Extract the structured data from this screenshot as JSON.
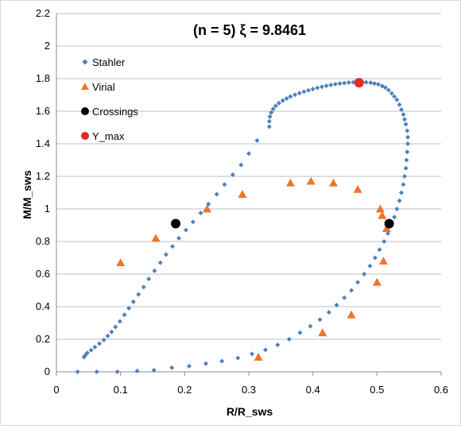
{
  "chart_data": {
    "type": "scatter",
    "title": "(n = 5)   ξ = 9.8461",
    "xlabel": "R/R_sws",
    "ylabel": "M/M_sws",
    "xlim": [
      0,
      0.6
    ],
    "ylim": [
      0,
      2.2
    ],
    "xticks": [
      "0",
      "0.1",
      "0.2",
      "0.3",
      "0.4",
      "0.5",
      "0.6"
    ],
    "yticks": [
      "0",
      "0.2",
      "0.4",
      "0.6",
      "0.8",
      "1",
      "1.2",
      "1.4",
      "1.6",
      "1.8",
      "2",
      "2.2"
    ],
    "grid": "horizontal",
    "legend_position": "left-inside",
    "series": [
      {
        "name": "Stahler",
        "marker": "diamond",
        "color": "#4f81bd",
        "points": [
          [
            0.033,
            0.0
          ],
          [
            0.063,
            0.0
          ],
          [
            0.095,
            0.0
          ],
          [
            0.126,
            0.005
          ],
          [
            0.152,
            0.01
          ],
          [
            0.18,
            0.025
          ],
          [
            0.207,
            0.035
          ],
          [
            0.233,
            0.05
          ],
          [
            0.258,
            0.065
          ],
          [
            0.283,
            0.085
          ],
          [
            0.305,
            0.11
          ],
          [
            0.326,
            0.135
          ],
          [
            0.345,
            0.165
          ],
          [
            0.363,
            0.2
          ],
          [
            0.38,
            0.24
          ],
          [
            0.396,
            0.28
          ],
          [
            0.411,
            0.32
          ],
          [
            0.425,
            0.365
          ],
          [
            0.437,
            0.41
          ],
          [
            0.449,
            0.455
          ],
          [
            0.46,
            0.5
          ],
          [
            0.47,
            0.55
          ],
          [
            0.48,
            0.6
          ],
          [
            0.489,
            0.65
          ],
          [
            0.497,
            0.7
          ],
          [
            0.504,
            0.75
          ],
          [
            0.511,
            0.8
          ],
          [
            0.517,
            0.85
          ],
          [
            0.522,
            0.9
          ],
          [
            0.527,
            0.95
          ],
          [
            0.531,
            1.0
          ],
          [
            0.535,
            1.05
          ],
          [
            0.538,
            1.1
          ],
          [
            0.541,
            1.15
          ],
          [
            0.543,
            1.2
          ],
          [
            0.545,
            1.25
          ],
          [
            0.546,
            1.3
          ],
          [
            0.547,
            1.35
          ],
          [
            0.548,
            1.4
          ],
          [
            0.548,
            1.44
          ],
          [
            0.547,
            1.48
          ],
          [
            0.545,
            1.52
          ],
          [
            0.543,
            1.55
          ],
          [
            0.541,
            1.58
          ],
          [
            0.538,
            1.61
          ],
          [
            0.535,
            1.64
          ],
          [
            0.531,
            1.67
          ],
          [
            0.527,
            1.69
          ],
          [
            0.523,
            1.71
          ],
          [
            0.518,
            1.73
          ],
          [
            0.513,
            1.745
          ],
          [
            0.508,
            1.755
          ],
          [
            0.502,
            1.765
          ],
          [
            0.496,
            1.77
          ],
          [
            0.49,
            1.775
          ],
          [
            0.483,
            1.778
          ],
          [
            0.477,
            1.779
          ],
          [
            0.47,
            1.779
          ],
          [
            0.463,
            1.778
          ],
          [
            0.456,
            1.776
          ],
          [
            0.449,
            1.773
          ],
          [
            0.442,
            1.77
          ],
          [
            0.435,
            1.766
          ],
          [
            0.428,
            1.761
          ],
          [
            0.421,
            1.756
          ],
          [
            0.414,
            1.75
          ],
          [
            0.407,
            1.743
          ],
          [
            0.4,
            1.736
          ],
          [
            0.393,
            1.728
          ],
          [
            0.386,
            1.72
          ],
          [
            0.379,
            1.711
          ],
          [
            0.372,
            1.701
          ],
          [
            0.365,
            1.69
          ],
          [
            0.359,
            1.678
          ],
          [
            0.353,
            1.665
          ],
          [
            0.347,
            1.65
          ],
          [
            0.342,
            1.633
          ],
          [
            0.338,
            1.614
          ],
          [
            0.335,
            1.592
          ],
          [
            0.333,
            1.567
          ],
          [
            0.332,
            1.538
          ],
          [
            0.332,
            1.505
          ],
          [
            0.313,
            1.42
          ],
          [
            0.3,
            1.34
          ],
          [
            0.288,
            1.27
          ],
          [
            0.275,
            1.21
          ],
          [
            0.262,
            1.15
          ],
          [
            0.25,
            1.09
          ],
          [
            0.237,
            1.03
          ],
          [
            0.225,
            0.975
          ],
          [
            0.213,
            0.92
          ],
          [
            0.202,
            0.87
          ],
          [
            0.191,
            0.82
          ],
          [
            0.181,
            0.77
          ],
          [
            0.171,
            0.72
          ],
          [
            0.162,
            0.67
          ],
          [
            0.153,
            0.62
          ],
          [
            0.144,
            0.57
          ],
          [
            0.136,
            0.52
          ],
          [
            0.128,
            0.475
          ],
          [
            0.12,
            0.43
          ],
          [
            0.113,
            0.39
          ],
          [
            0.106,
            0.35
          ],
          [
            0.099,
            0.31
          ],
          [
            0.092,
            0.275
          ],
          [
            0.086,
            0.245
          ],
          [
            0.08,
            0.22
          ],
          [
            0.074,
            0.195
          ],
          [
            0.067,
            0.173
          ],
          [
            0.06,
            0.152
          ],
          [
            0.054,
            0.133
          ],
          [
            0.048,
            0.116
          ],
          [
            0.045,
            0.102
          ],
          [
            0.043,
            0.09
          ]
        ]
      },
      {
        "name": "Virial",
        "marker": "triangle",
        "color": "#f0742b",
        "points": [
          [
            0.1,
            0.67
          ],
          [
            0.155,
            0.82
          ],
          [
            0.235,
            1.0
          ],
          [
            0.29,
            1.09
          ],
          [
            0.365,
            1.16
          ],
          [
            0.397,
            1.17
          ],
          [
            0.432,
            1.16
          ],
          [
            0.47,
            1.12
          ],
          [
            0.505,
            1.0
          ],
          [
            0.508,
            0.96
          ],
          [
            0.515,
            0.88
          ],
          [
            0.51,
            0.68
          ],
          [
            0.5,
            0.55
          ],
          [
            0.46,
            0.35
          ],
          [
            0.415,
            0.24
          ],
          [
            0.315,
            0.09
          ]
        ]
      },
      {
        "name": "Crossings",
        "marker": "circle",
        "color": "#000000",
        "points": [
          [
            0.186,
            0.91
          ],
          [
            0.519,
            0.91
          ]
        ]
      },
      {
        "name": "Y_max",
        "marker": "circle",
        "color": "#e32a28",
        "points": [
          [
            0.472,
            1.775
          ]
        ]
      }
    ]
  }
}
